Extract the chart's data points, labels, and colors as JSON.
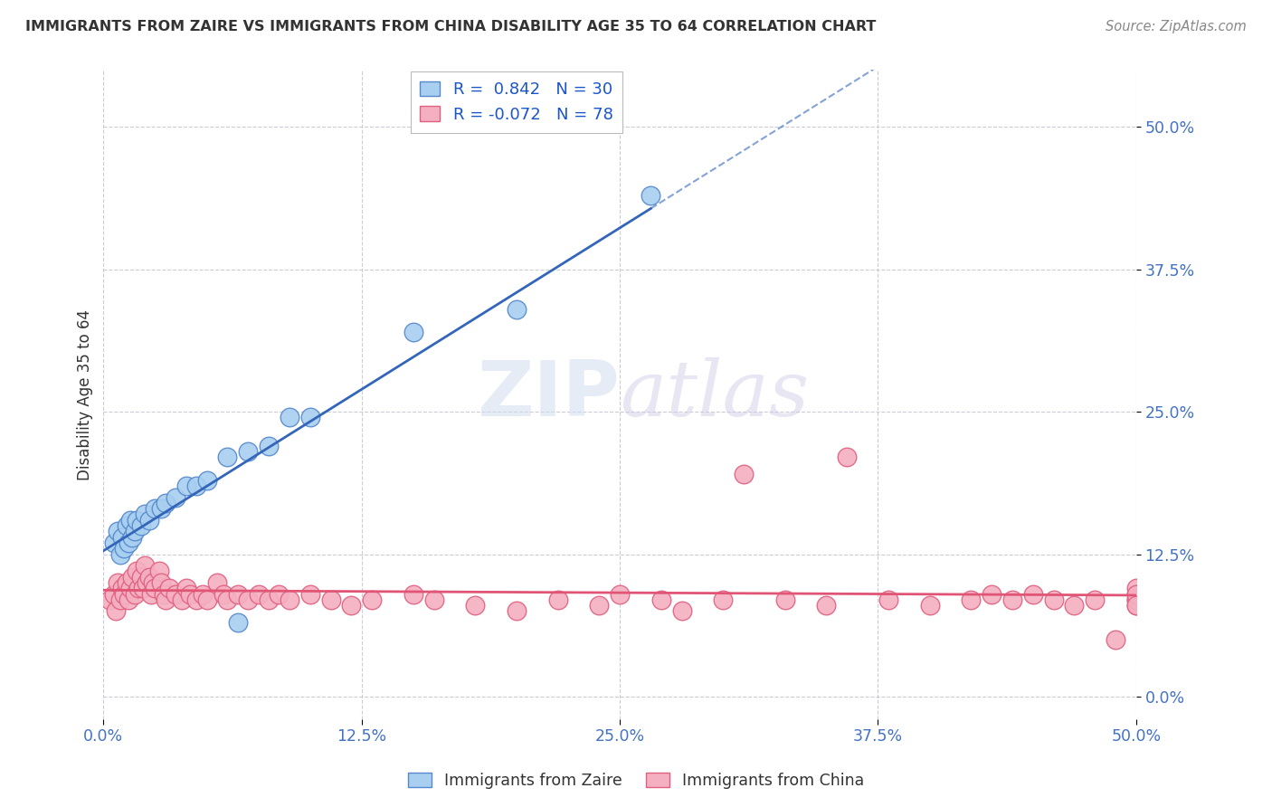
{
  "title": "IMMIGRANTS FROM ZAIRE VS IMMIGRANTS FROM CHINA DISABILITY AGE 35 TO 64 CORRELATION CHART",
  "source": "Source: ZipAtlas.com",
  "ylabel": "Disability Age 35 to 64",
  "xlim": [
    0.0,
    0.5
  ],
  "ylim": [
    -0.02,
    0.55
  ],
  "xtick_vals": [
    0.0,
    0.125,
    0.25,
    0.375,
    0.5
  ],
  "ytick_vals": [
    0.0,
    0.125,
    0.25,
    0.375,
    0.5
  ],
  "zaire_color": "#a8cff0",
  "china_color": "#f4b0c0",
  "zaire_edge_color": "#5588cc",
  "china_edge_color": "#e06080",
  "zaire_line_color": "#3366bb",
  "china_line_color": "#e05575",
  "zaire_R": 0.842,
  "zaire_N": 30,
  "china_R": -0.072,
  "china_N": 78,
  "tick_color": "#4472c4",
  "legend_labels": [
    "Immigrants from Zaire",
    "Immigrants from China"
  ],
  "zaire_scatter_x": [
    0.005,
    0.007,
    0.008,
    0.009,
    0.01,
    0.011,
    0.012,
    0.013,
    0.014,
    0.015,
    0.016,
    0.018,
    0.02,
    0.022,
    0.025,
    0.028,
    0.03,
    0.035,
    0.04,
    0.045,
    0.05,
    0.06,
    0.065,
    0.07,
    0.08,
    0.09,
    0.1,
    0.15,
    0.2,
    0.265
  ],
  "zaire_scatter_y": [
    0.135,
    0.145,
    0.125,
    0.14,
    0.13,
    0.15,
    0.135,
    0.155,
    0.14,
    0.145,
    0.155,
    0.15,
    0.16,
    0.155,
    0.165,
    0.165,
    0.17,
    0.175,
    0.185,
    0.185,
    0.19,
    0.21,
    0.065,
    0.215,
    0.22,
    0.245,
    0.245,
    0.32,
    0.34,
    0.44
  ],
  "china_scatter_x": [
    0.003,
    0.005,
    0.006,
    0.007,
    0.008,
    0.009,
    0.01,
    0.011,
    0.012,
    0.013,
    0.014,
    0.015,
    0.016,
    0.017,
    0.018,
    0.019,
    0.02,
    0.021,
    0.022,
    0.023,
    0.024,
    0.025,
    0.027,
    0.028,
    0.029,
    0.03,
    0.032,
    0.035,
    0.038,
    0.04,
    0.042,
    0.045,
    0.048,
    0.05,
    0.055,
    0.058,
    0.06,
    0.065,
    0.07,
    0.075,
    0.08,
    0.085,
    0.09,
    0.1,
    0.11,
    0.12,
    0.13,
    0.15,
    0.16,
    0.18,
    0.2,
    0.22,
    0.24,
    0.25,
    0.27,
    0.28,
    0.3,
    0.31,
    0.33,
    0.35,
    0.36,
    0.38,
    0.4,
    0.42,
    0.43,
    0.44,
    0.45,
    0.46,
    0.47,
    0.48,
    0.49,
    0.5,
    0.5,
    0.5,
    0.5,
    0.5,
    0.5,
    0.5
  ],
  "china_scatter_y": [
    0.085,
    0.09,
    0.075,
    0.1,
    0.085,
    0.095,
    0.09,
    0.1,
    0.085,
    0.095,
    0.105,
    0.09,
    0.11,
    0.095,
    0.105,
    0.095,
    0.115,
    0.1,
    0.105,
    0.09,
    0.1,
    0.095,
    0.11,
    0.1,
    0.09,
    0.085,
    0.095,
    0.09,
    0.085,
    0.095,
    0.09,
    0.085,
    0.09,
    0.085,
    0.1,
    0.09,
    0.085,
    0.09,
    0.085,
    0.09,
    0.085,
    0.09,
    0.085,
    0.09,
    0.085,
    0.08,
    0.085,
    0.09,
    0.085,
    0.08,
    0.075,
    0.085,
    0.08,
    0.09,
    0.085,
    0.075,
    0.085,
    0.195,
    0.085,
    0.08,
    0.21,
    0.085,
    0.08,
    0.085,
    0.09,
    0.085,
    0.09,
    0.085,
    0.08,
    0.085,
    0.05,
    0.08,
    0.085,
    0.09,
    0.095,
    0.085,
    0.09,
    0.08
  ]
}
